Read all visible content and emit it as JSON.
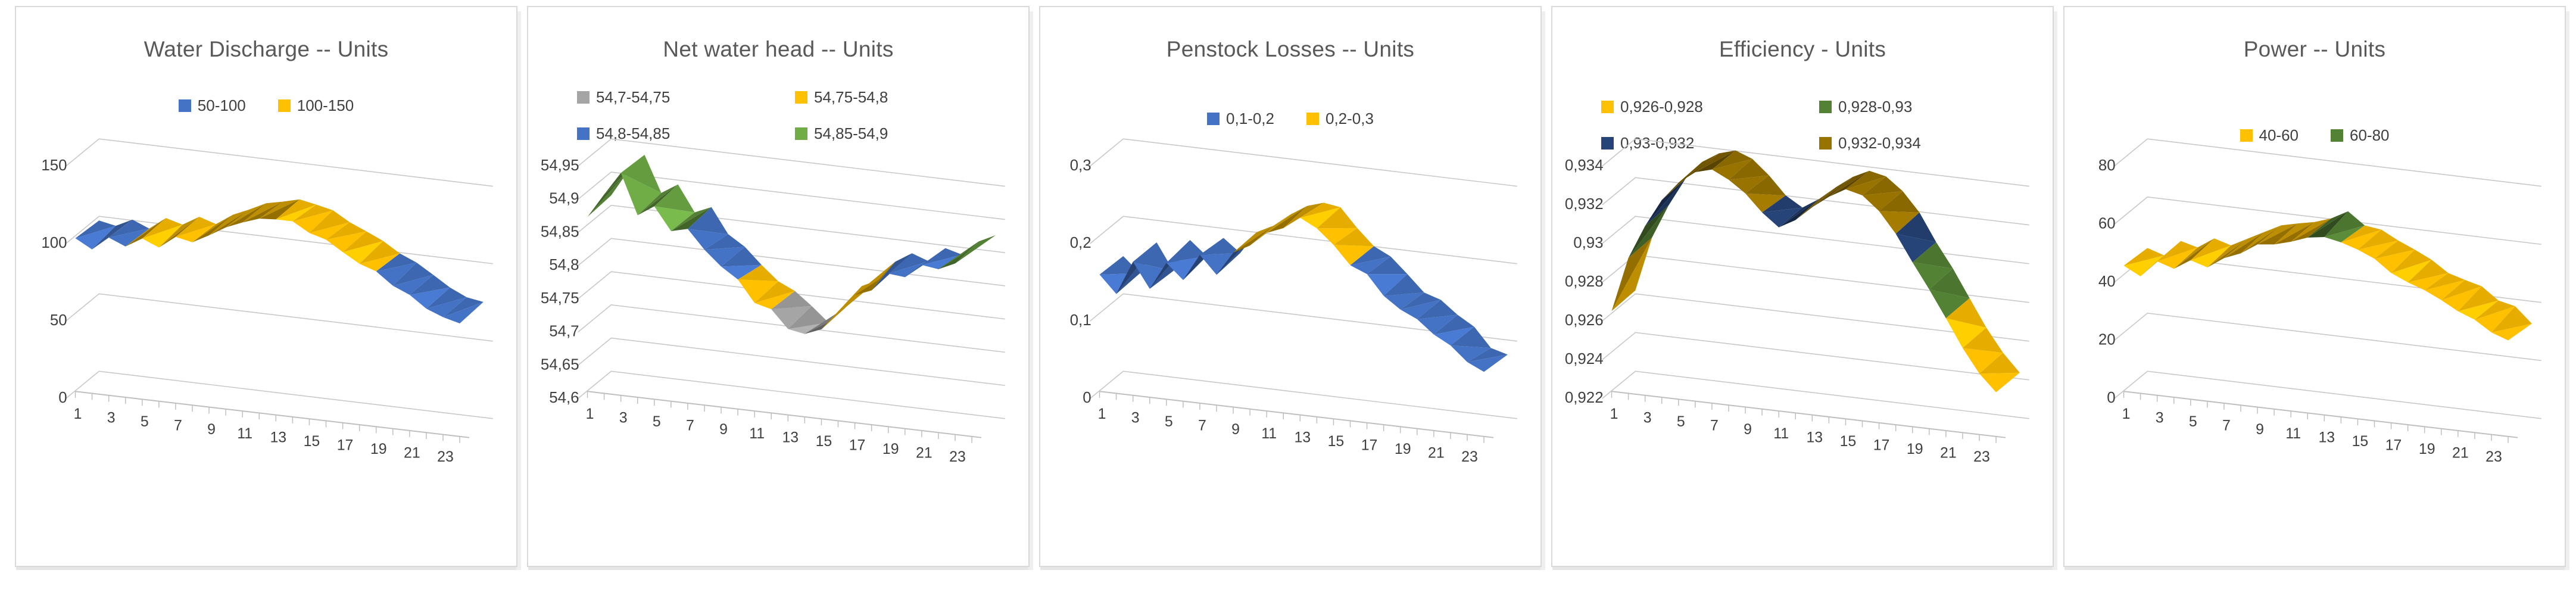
{
  "page": {
    "background": "#FFFFFF",
    "panel_border": "#D9D9D9",
    "title_color": "#595959",
    "axis_text_color": "#404040",
    "gridline_color": "#C8C8C8"
  },
  "charts": [
    {
      "title": "Water Discharge -- Units",
      "legend": [
        {
          "label": "50-100",
          "color": "#4472C4"
        },
        {
          "label": "100-150",
          "color": "#FFC000"
        }
      ],
      "chart_data": {
        "type": "area",
        "variant": "3d-surface-ribbon",
        "title": "Water Discharge -- Units",
        "x": [
          1,
          2,
          3,
          4,
          5,
          6,
          7,
          8,
          9,
          10,
          11,
          12,
          13,
          14,
          15,
          16,
          17,
          18,
          19,
          20,
          21,
          22,
          23,
          24
        ],
        "values": [
          98,
          94,
          101,
          97,
          103,
          99,
          106,
          104,
          110,
          116,
          121,
          125,
          127,
          125,
          121,
          116,
          111,
          105,
          99,
          93,
          87,
          81,
          76,
          72
        ],
        "bands": [
          {
            "label": "50-100",
            "min": 50,
            "max": 100,
            "color": "#4472C4"
          },
          {
            "label": "100-150",
            "min": 100,
            "max": 150,
            "color": "#FFC000"
          }
        ],
        "ylim": [
          0,
          150
        ],
        "ytick_values": [
          0,
          50,
          100,
          150
        ],
        "ytick_labels": [
          "0",
          "50",
          "100",
          "150"
        ],
        "xtick_labels": [
          "1",
          "3",
          "5",
          "7",
          "9",
          "11",
          "13",
          "15",
          "17",
          "19",
          "21",
          "23"
        ],
        "legend_position": "top",
        "grid": true
      }
    },
    {
      "title": "Net water head -- Units",
      "legend": [
        {
          "label": "54,7-54,75",
          "color": "#A5A5A5"
        },
        {
          "label": "54,75-54,8",
          "color": "#FFC000"
        },
        {
          "label": "54,8-54,85",
          "color": "#4472C4"
        },
        {
          "label": "54,85-54,9",
          "color": "#70AD47"
        }
      ],
      "chart_data": {
        "type": "area",
        "variant": "3d-surface-ribbon",
        "title": "Net water head -- Units",
        "x": [
          1,
          2,
          3,
          4,
          5,
          6,
          7,
          8,
          9,
          10,
          11,
          12,
          13,
          14,
          15,
          16,
          17,
          18,
          19,
          20,
          21,
          22,
          23,
          24
        ],
        "values": [
          54.87,
          54.9,
          54.93,
          54.87,
          54.89,
          54.85,
          54.86,
          54.83,
          54.81,
          54.79,
          54.77,
          54.75,
          54.73,
          54.72,
          54.74,
          54.77,
          54.79,
          54.81,
          54.83,
          54.82,
          54.85,
          54.84,
          54.86,
          54.88
        ],
        "bands": [
          {
            "label": "54,7-54,75",
            "min": 54.7,
            "max": 54.75,
            "color": "#A5A5A5"
          },
          {
            "label": "54,75-54,8",
            "min": 54.75,
            "max": 54.8,
            "color": "#FFC000"
          },
          {
            "label": "54,8-54,85",
            "min": 54.8,
            "max": 54.85,
            "color": "#4472C4"
          },
          {
            "label": "54,85-54,9",
            "min": 54.85,
            "max": 54.9,
            "color": "#70AD47"
          }
        ],
        "ylim": [
          54.6,
          54.95
        ],
        "ytick_values": [
          54.6,
          54.65,
          54.7,
          54.75,
          54.8,
          54.85,
          54.9,
          54.95
        ],
        "ytick_labels": [
          "54,6",
          "54,65",
          "54,7",
          "54,75",
          "54,8",
          "54,85",
          "54,9",
          "54,95"
        ],
        "xtick_labels": [
          "1",
          "3",
          "5",
          "7",
          "9",
          "11",
          "13",
          "15",
          "17",
          "19",
          "21",
          "23"
        ],
        "legend_position": "top",
        "grid": true
      }
    },
    {
      "title": "Penstock Losses -- Units",
      "legend": [
        {
          "label": "0,1-0,2",
          "color": "#4472C4"
        },
        {
          "label": "0,2-0,3",
          "color": "#FFC000"
        }
      ],
      "chart_data": {
        "type": "area",
        "variant": "3d-surface-ribbon",
        "title": "Penstock Losses -- Units",
        "x": [
          1,
          2,
          3,
          4,
          5,
          6,
          7,
          8,
          9,
          10,
          11,
          12,
          13,
          14,
          15,
          16,
          17,
          18,
          19,
          20,
          21,
          22,
          23,
          24
        ],
        "values": [
          0.15,
          0.13,
          0.17,
          0.14,
          0.18,
          0.16,
          0.19,
          0.17,
          0.2,
          0.21,
          0.23,
          0.24,
          0.25,
          0.24,
          0.22,
          0.2,
          0.19,
          0.17,
          0.15,
          0.14,
          0.12,
          0.11,
          0.09,
          0.08
        ],
        "bands": [
          {
            "label": "0,1-0,2",
            "min": 0.1,
            "max": 0.2,
            "color": "#4472C4"
          },
          {
            "label": "0,2-0,3",
            "min": 0.2,
            "max": 0.3,
            "color": "#FFC000"
          }
        ],
        "ylim": [
          0,
          0.3
        ],
        "ytick_values": [
          0,
          0.1,
          0.2,
          0.3
        ],
        "ytick_labels": [
          "0",
          "0,1",
          "0,2",
          "0,3"
        ],
        "xtick_labels": [
          "1",
          "3",
          "5",
          "7",
          "9",
          "11",
          "13",
          "15",
          "17",
          "19",
          "21",
          "23"
        ],
        "legend_position": "top",
        "grid": true
      }
    },
    {
      "title": "Efficiency - Units",
      "legend": [
        {
          "label": "0,926-0,928",
          "color": "#FFC000"
        },
        {
          "label": "0,928-0,93",
          "color": "#548235"
        },
        {
          "label": "0,93-0,932",
          "color": "#264478"
        },
        {
          "label": "0,932-0,934",
          "color": "#997300"
        }
      ],
      "chart_data": {
        "type": "area",
        "variant": "3d-surface-ribbon",
        "title": "Efficiency - Units",
        "x": [
          1,
          2,
          3,
          4,
          5,
          6,
          7,
          8,
          9,
          10,
          11,
          12,
          13,
          14,
          15,
          16,
          17,
          18,
          19,
          20,
          21,
          22,
          23,
          24
        ],
        "values": [
          0.9262,
          0.929,
          0.9308,
          0.9322,
          0.9332,
          0.9338,
          0.934,
          0.9337,
          0.933,
          0.9321,
          0.9315,
          0.9319,
          0.9327,
          0.9334,
          0.9338,
          0.9336,
          0.9329,
          0.9318,
          0.9305,
          0.9292,
          0.9278,
          0.9264,
          0.9252,
          0.9243
        ],
        "bands": [
          {
            "label": "0,926-0,928",
            "min": 0.926,
            "max": 0.928,
            "color": "#FFC000"
          },
          {
            "label": "0,928-0,93",
            "min": 0.928,
            "max": 0.93,
            "color": "#548235"
          },
          {
            "label": "0,93-0,932",
            "min": 0.93,
            "max": 0.932,
            "color": "#264478"
          },
          {
            "label": "0,932-0,934",
            "min": 0.932,
            "max": 0.934,
            "color": "#997300"
          }
        ],
        "ylim": [
          0.922,
          0.934
        ],
        "ytick_values": [
          0.922,
          0.924,
          0.926,
          0.928,
          0.93,
          0.932,
          0.934
        ],
        "ytick_labels": [
          "0,922",
          "0,924",
          "0,926",
          "0,928",
          "0,93",
          "0,932",
          "0,934"
        ],
        "xtick_labels": [
          "1",
          "3",
          "5",
          "7",
          "9",
          "11",
          "13",
          "15",
          "17",
          "19",
          "21",
          "23"
        ],
        "legend_position": "top",
        "grid": true
      }
    },
    {
      "title": "Power -- Units",
      "legend": [
        {
          "label": "40-60",
          "color": "#FFC000"
        },
        {
          "label": "60-80",
          "color": "#548235"
        }
      ],
      "chart_data": {
        "type": "area",
        "variant": "3d-surface-ribbon",
        "title": "Power -- Units",
        "x": [
          1,
          2,
          3,
          4,
          5,
          6,
          7,
          8,
          9,
          10,
          11,
          12,
          13,
          14,
          15,
          16,
          17,
          18,
          19,
          20,
          21,
          22,
          23,
          24
        ],
        "values": [
          43,
          41,
          46,
          44,
          49,
          47,
          51,
          53,
          55,
          57,
          59,
          61,
          62,
          60,
          58,
          55,
          52,
          50,
          47,
          45,
          42,
          39,
          36,
          33
        ],
        "bands": [
          {
            "label": "40-60",
            "min": 40,
            "max": 60,
            "color": "#FFC000"
          },
          {
            "label": "60-80",
            "min": 60,
            "max": 80,
            "color": "#548235"
          }
        ],
        "ylim": [
          0,
          80
        ],
        "ytick_values": [
          0,
          20,
          40,
          60,
          80
        ],
        "ytick_labels": [
          "0",
          "20",
          "40",
          "60",
          "80"
        ],
        "xtick_labels": [
          "1",
          "3",
          "5",
          "7",
          "9",
          "11",
          "13",
          "15",
          "17",
          "19",
          "21",
          "23"
        ],
        "legend_position": "top",
        "grid": true
      }
    }
  ]
}
